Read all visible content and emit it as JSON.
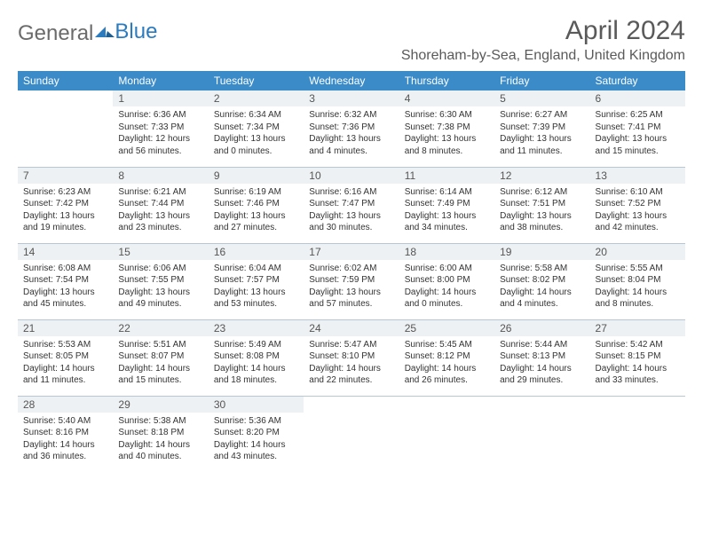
{
  "logo": {
    "part1": "General",
    "part2": "Blue"
  },
  "title": "April 2024",
  "subtitle": "Shoreham-by-Sea, England, United Kingdom",
  "colors": {
    "header_bg": "#3b8bc9",
    "header_text": "#ffffff",
    "daynum_bg": "#eef1f3",
    "rule": "#b9c7d2",
    "logo_gray": "#6b6b6b",
    "logo_blue": "#2b7bbf"
  },
  "fonts": {
    "title_size": 30,
    "subtitle_size": 16,
    "dayhead_size": 12,
    "daynum_size": 12,
    "body_size": 10
  },
  "dayHeaders": [
    "Sunday",
    "Monday",
    "Tuesday",
    "Wednesday",
    "Thursday",
    "Friday",
    "Saturday"
  ],
  "weeks": [
    [
      null,
      {
        "n": "1",
        "l1": "Sunrise: 6:36 AM",
        "l2": "Sunset: 7:33 PM",
        "l3": "Daylight: 12 hours",
        "l4": "and 56 minutes."
      },
      {
        "n": "2",
        "l1": "Sunrise: 6:34 AM",
        "l2": "Sunset: 7:34 PM",
        "l3": "Daylight: 13 hours",
        "l4": "and 0 minutes."
      },
      {
        "n": "3",
        "l1": "Sunrise: 6:32 AM",
        "l2": "Sunset: 7:36 PM",
        "l3": "Daylight: 13 hours",
        "l4": "and 4 minutes."
      },
      {
        "n": "4",
        "l1": "Sunrise: 6:30 AM",
        "l2": "Sunset: 7:38 PM",
        "l3": "Daylight: 13 hours",
        "l4": "and 8 minutes."
      },
      {
        "n": "5",
        "l1": "Sunrise: 6:27 AM",
        "l2": "Sunset: 7:39 PM",
        "l3": "Daylight: 13 hours",
        "l4": "and 11 minutes."
      },
      {
        "n": "6",
        "l1": "Sunrise: 6:25 AM",
        "l2": "Sunset: 7:41 PM",
        "l3": "Daylight: 13 hours",
        "l4": "and 15 minutes."
      }
    ],
    [
      {
        "n": "7",
        "l1": "Sunrise: 6:23 AM",
        "l2": "Sunset: 7:42 PM",
        "l3": "Daylight: 13 hours",
        "l4": "and 19 minutes."
      },
      {
        "n": "8",
        "l1": "Sunrise: 6:21 AM",
        "l2": "Sunset: 7:44 PM",
        "l3": "Daylight: 13 hours",
        "l4": "and 23 minutes."
      },
      {
        "n": "9",
        "l1": "Sunrise: 6:19 AM",
        "l2": "Sunset: 7:46 PM",
        "l3": "Daylight: 13 hours",
        "l4": "and 27 minutes."
      },
      {
        "n": "10",
        "l1": "Sunrise: 6:16 AM",
        "l2": "Sunset: 7:47 PM",
        "l3": "Daylight: 13 hours",
        "l4": "and 30 minutes."
      },
      {
        "n": "11",
        "l1": "Sunrise: 6:14 AM",
        "l2": "Sunset: 7:49 PM",
        "l3": "Daylight: 13 hours",
        "l4": "and 34 minutes."
      },
      {
        "n": "12",
        "l1": "Sunrise: 6:12 AM",
        "l2": "Sunset: 7:51 PM",
        "l3": "Daylight: 13 hours",
        "l4": "and 38 minutes."
      },
      {
        "n": "13",
        "l1": "Sunrise: 6:10 AM",
        "l2": "Sunset: 7:52 PM",
        "l3": "Daylight: 13 hours",
        "l4": "and 42 minutes."
      }
    ],
    [
      {
        "n": "14",
        "l1": "Sunrise: 6:08 AM",
        "l2": "Sunset: 7:54 PM",
        "l3": "Daylight: 13 hours",
        "l4": "and 45 minutes."
      },
      {
        "n": "15",
        "l1": "Sunrise: 6:06 AM",
        "l2": "Sunset: 7:55 PM",
        "l3": "Daylight: 13 hours",
        "l4": "and 49 minutes."
      },
      {
        "n": "16",
        "l1": "Sunrise: 6:04 AM",
        "l2": "Sunset: 7:57 PM",
        "l3": "Daylight: 13 hours",
        "l4": "and 53 minutes."
      },
      {
        "n": "17",
        "l1": "Sunrise: 6:02 AM",
        "l2": "Sunset: 7:59 PM",
        "l3": "Daylight: 13 hours",
        "l4": "and 57 minutes."
      },
      {
        "n": "18",
        "l1": "Sunrise: 6:00 AM",
        "l2": "Sunset: 8:00 PM",
        "l3": "Daylight: 14 hours",
        "l4": "and 0 minutes."
      },
      {
        "n": "19",
        "l1": "Sunrise: 5:58 AM",
        "l2": "Sunset: 8:02 PM",
        "l3": "Daylight: 14 hours",
        "l4": "and 4 minutes."
      },
      {
        "n": "20",
        "l1": "Sunrise: 5:55 AM",
        "l2": "Sunset: 8:04 PM",
        "l3": "Daylight: 14 hours",
        "l4": "and 8 minutes."
      }
    ],
    [
      {
        "n": "21",
        "l1": "Sunrise: 5:53 AM",
        "l2": "Sunset: 8:05 PM",
        "l3": "Daylight: 14 hours",
        "l4": "and 11 minutes."
      },
      {
        "n": "22",
        "l1": "Sunrise: 5:51 AM",
        "l2": "Sunset: 8:07 PM",
        "l3": "Daylight: 14 hours",
        "l4": "and 15 minutes."
      },
      {
        "n": "23",
        "l1": "Sunrise: 5:49 AM",
        "l2": "Sunset: 8:08 PM",
        "l3": "Daylight: 14 hours",
        "l4": "and 18 minutes."
      },
      {
        "n": "24",
        "l1": "Sunrise: 5:47 AM",
        "l2": "Sunset: 8:10 PM",
        "l3": "Daylight: 14 hours",
        "l4": "and 22 minutes."
      },
      {
        "n": "25",
        "l1": "Sunrise: 5:45 AM",
        "l2": "Sunset: 8:12 PM",
        "l3": "Daylight: 14 hours",
        "l4": "and 26 minutes."
      },
      {
        "n": "26",
        "l1": "Sunrise: 5:44 AM",
        "l2": "Sunset: 8:13 PM",
        "l3": "Daylight: 14 hours",
        "l4": "and 29 minutes."
      },
      {
        "n": "27",
        "l1": "Sunrise: 5:42 AM",
        "l2": "Sunset: 8:15 PM",
        "l3": "Daylight: 14 hours",
        "l4": "and 33 minutes."
      }
    ],
    [
      {
        "n": "28",
        "l1": "Sunrise: 5:40 AM",
        "l2": "Sunset: 8:16 PM",
        "l3": "Daylight: 14 hours",
        "l4": "and 36 minutes."
      },
      {
        "n": "29",
        "l1": "Sunrise: 5:38 AM",
        "l2": "Sunset: 8:18 PM",
        "l3": "Daylight: 14 hours",
        "l4": "and 40 minutes."
      },
      {
        "n": "30",
        "l1": "Sunrise: 5:36 AM",
        "l2": "Sunset: 8:20 PM",
        "l3": "Daylight: 14 hours",
        "l4": "and 43 minutes."
      },
      null,
      null,
      null,
      null
    ]
  ]
}
